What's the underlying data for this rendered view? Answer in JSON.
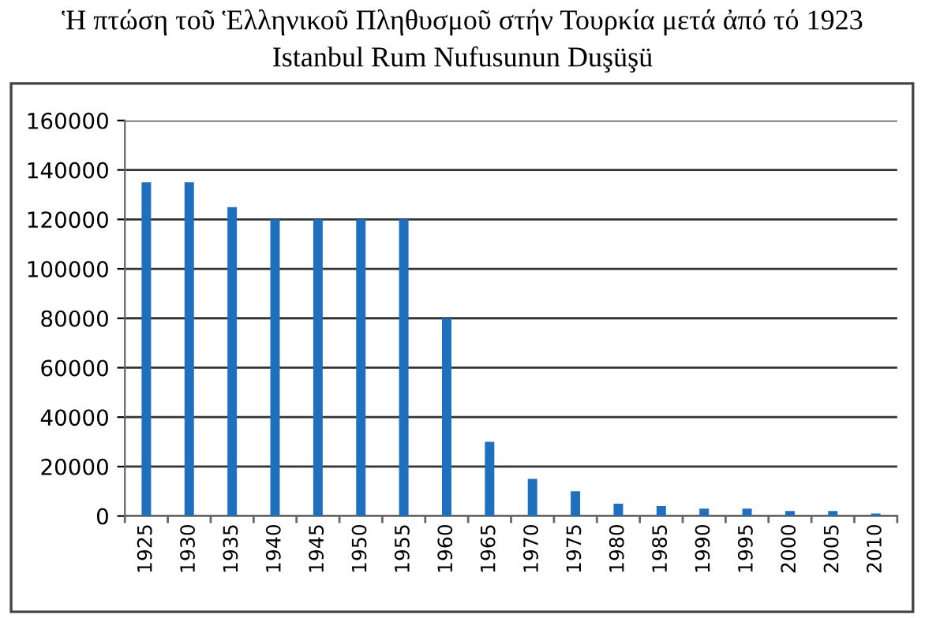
{
  "chart_data": {
    "type": "bar",
    "title": "Ἡ πτώση τοῦ Ἑλληνικοῦ Πληθυσμοῦ στήν Τουρκία μετά ἀπό τό 1923",
    "subtitle": "Istanbul Rum Nufusunun Duşüşü",
    "categories": [
      "1925",
      "1930",
      "1935",
      "1940",
      "1945",
      "1950",
      "1955",
      "1960",
      "1965",
      "1970",
      "1975",
      "1980",
      "1985",
      "1990",
      "1995",
      "2000",
      "2005",
      "2010"
    ],
    "values": [
      135000,
      135000,
      125000,
      120000,
      120000,
      120000,
      120000,
      80000,
      30000,
      15000,
      10000,
      5000,
      4000,
      3000,
      3000,
      2000,
      2000,
      1000
    ],
    "color": "#1f6fbf",
    "ylim": [
      0,
      160000
    ],
    "yticks": [
      0,
      20000,
      40000,
      60000,
      80000,
      100000,
      120000,
      140000,
      160000
    ],
    "grid": "y",
    "legend": false
  }
}
